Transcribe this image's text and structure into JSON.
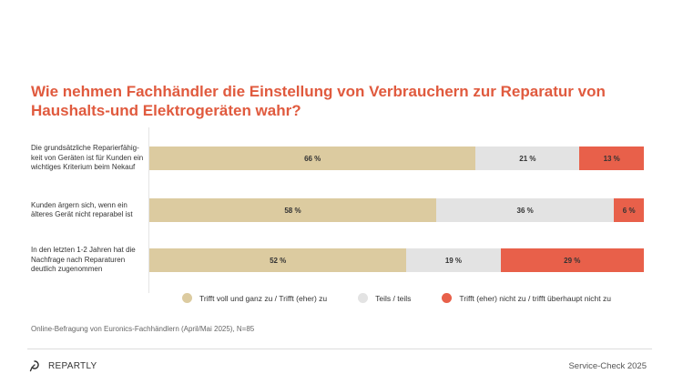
{
  "chart_data": {
    "type": "bar",
    "orientation": "horizontal",
    "stacked": true,
    "title": "Wie nehmen Fachhändler die Einstellung von Verbrauchern zur Reparatur von Haushalts-und Elektrogeräten wahr?",
    "categories": [
      "Die grundsätzliche Reparierfähig-keit von Geräten ist für Kunden ein wichtiges Kriterium beim Nekauf",
      "Kunden ärgern sich, wenn ein älteres Gerät nicht reparabel ist",
      "In den letzten 1-2 Jahren hat die Nachfrage nach Reparaturen deutlich zugenommen"
    ],
    "series": [
      {
        "name": "Trifft voll und ganz zu / Trifft (eher) zu",
        "values": [
          66,
          58,
          52
        ],
        "color": "#dccba0"
      },
      {
        "name": "Teils / teils",
        "values": [
          21,
          36,
          19
        ],
        "color": "#e3e3e3"
      },
      {
        "name": "Trifft (eher) nicht zu / trifft überhaupt nicht zu",
        "values": [
          13,
          6,
          29
        ],
        "color": "#e8604a"
      }
    ],
    "value_suffix": " %",
    "xlim": [
      0,
      100
    ],
    "legend": "bottom",
    "grid": false
  },
  "footnote": "Online-Befragung von Euronics-Fachhändlern (April/Mai 2025), N=85",
  "logo": "REPARTLY",
  "brand": "Service-Check 2025"
}
